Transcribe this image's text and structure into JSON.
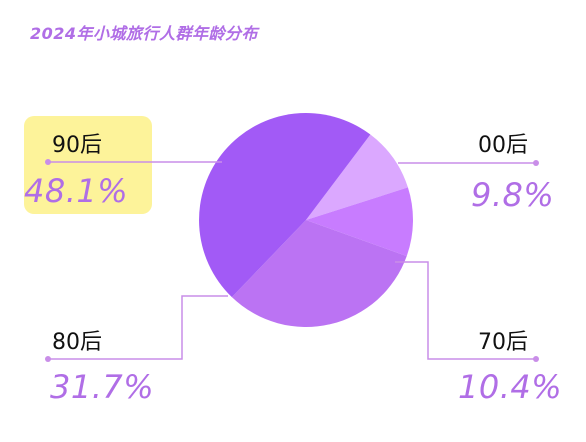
{
  "chart_data": {
    "type": "pie",
    "title": "2024年小城旅行人群年龄分布",
    "slices": [
      {
        "label": "00后",
        "value": 9.8,
        "display": "9.8%",
        "color": "#dba8ff"
      },
      {
        "label": "70后",
        "value": 10.4,
        "display": "10.4%",
        "color": "#c87cff"
      },
      {
        "label": "80后",
        "value": 31.7,
        "display": "31.7%",
        "color": "#bb73f3"
      },
      {
        "label": "90后",
        "value": 48.1,
        "display": "48.1%",
        "color": "#a25af6",
        "highlighted": true
      }
    ]
  },
  "colors": {
    "accent": "#b06ee6",
    "highlight_bg": "#fdf39a",
    "leader_line": "#c98ee8"
  }
}
